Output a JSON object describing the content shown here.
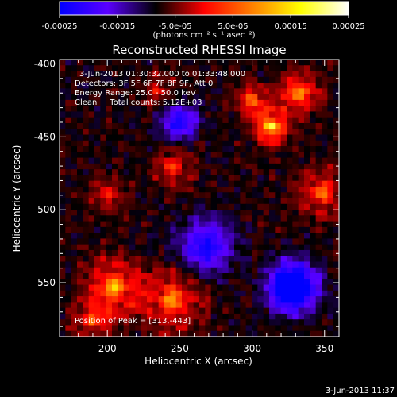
{
  "chart_data": {
    "type": "heatmap",
    "title": "Reconstructed RHESSI Image",
    "xlabel": "Heliocentric X (arcsec)",
    "ylabel": "Heliocentric Y (arcsec)",
    "xlim": [
      167,
      360
    ],
    "ylim": [
      -587,
      -397
    ],
    "x_ticks": [
      200,
      250,
      300,
      350
    ],
    "y_ticks": [
      -400,
      -450,
      -500,
      -550
    ],
    "colorbar": {
      "range": [
        -0.00025,
        0.00025
      ],
      "tick_labels": [
        "-0.00025",
        "-0.00015",
        "-5.0e-05",
        "5.0e-05",
        "0.00015",
        "0.00025"
      ],
      "unit_label": "(photons cm⁻² s⁻¹ asec⁻²)",
      "colors": [
        "#0000ff",
        "#5a00ff",
        "#000000",
        "#ff0000",
        "#ff8000",
        "#ffff00",
        "#ffffff"
      ]
    },
    "annotations": [
      "3-Jun-2013 01:30:32.000 to 01:33:48.000",
      "Detectors: 3F 5F 6F 7F 8F 9F, Att 0",
      "Energy Range: 25.0 - 50.0 keV",
      "Clean     Total counts: 5.12E+03"
    ],
    "peak_label": "Position of Peak = [313,-443]",
    "peak": {
      "x": 313,
      "y": -443
    },
    "bright_regions": [
      {
        "x": 313,
        "y": -443,
        "strength": 1.0,
        "radius": 10
      },
      {
        "x": 332,
        "y": -420,
        "strength": 0.75,
        "radius": 12
      },
      {
        "x": 300,
        "y": -425,
        "strength": 0.6,
        "radius": 10
      },
      {
        "x": 348,
        "y": -488,
        "strength": 0.55,
        "radius": 14
      },
      {
        "x": 205,
        "y": -553,
        "strength": 0.75,
        "radius": 16
      },
      {
        "x": 245,
        "y": -562,
        "strength": 0.65,
        "radius": 18
      },
      {
        "x": 190,
        "y": -575,
        "strength": 0.5,
        "radius": 12
      },
      {
        "x": 245,
        "y": -470,
        "strength": 0.45,
        "radius": 12
      },
      {
        "x": 200,
        "y": -490,
        "strength": 0.4,
        "radius": 10
      },
      {
        "x": 235,
        "y": -418,
        "strength": 0.35,
        "radius": 10
      }
    ],
    "dim_regions": [
      {
        "x": 328,
        "y": -553,
        "strength": 1.0,
        "radius": 16
      },
      {
        "x": 250,
        "y": -440,
        "strength": 0.55,
        "radius": 12
      },
      {
        "x": 268,
        "y": -525,
        "strength": 0.55,
        "radius": 18
      }
    ]
  },
  "footer": {
    "timestamp": "3-Jun-2013 11:37"
  }
}
